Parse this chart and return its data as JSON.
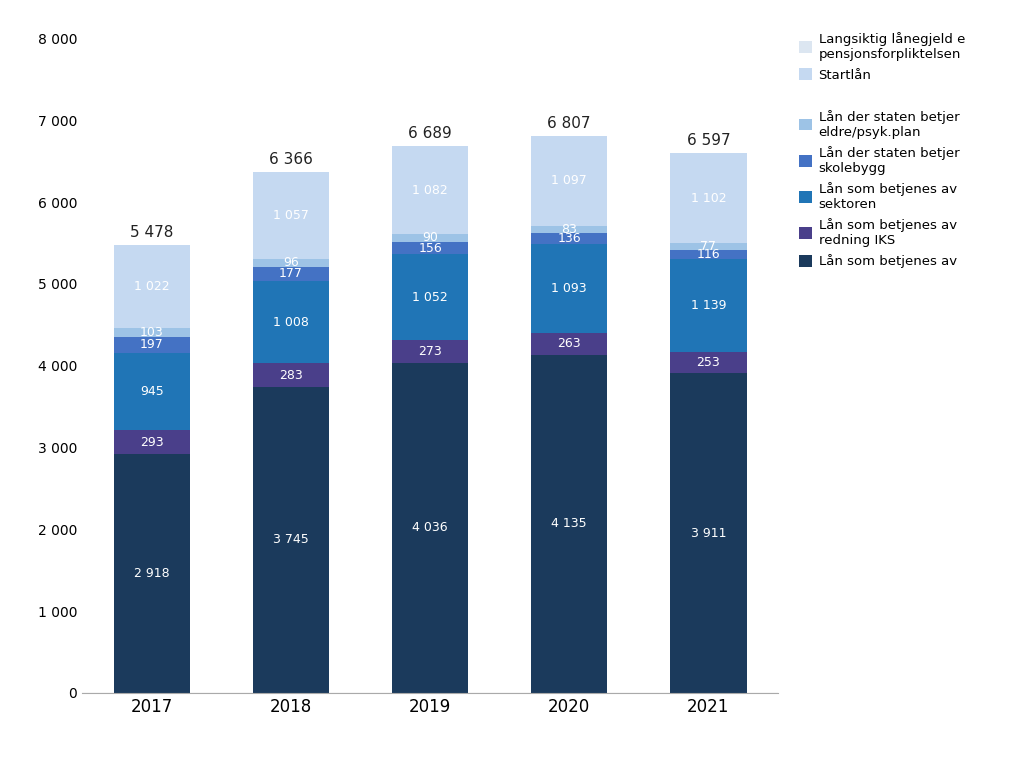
{
  "years": [
    "2017",
    "2018",
    "2019",
    "2020",
    "2021"
  ],
  "totals": [
    5478,
    6366,
    6689,
    6807,
    6597
  ],
  "series": [
    {
      "name": "Lån som betjenes av",
      "values": [
        2918,
        3745,
        4036,
        4135,
        3911
      ],
      "color": "#1b3a5c"
    },
    {
      "name": "Lån som betjenes av\nredning IKS",
      "values": [
        293,
        283,
        273,
        263,
        253
      ],
      "color": "#4a3f8a"
    },
    {
      "name": "Lån som betjenes av\nsektoren",
      "values": [
        945,
        1008,
        1052,
        1093,
        1139
      ],
      "color": "#2075b6"
    },
    {
      "name": "Lån der staten betjer\nskolebygg",
      "values": [
        197,
        177,
        156,
        136,
        116
      ],
      "color": "#4472c4"
    },
    {
      "name": "Lån der staten betjer\neldre/psyk.plan",
      "values": [
        103,
        96,
        90,
        83,
        77
      ],
      "color": "#9dc3e6"
    },
    {
      "name": "Startlån",
      "values": [
        1022,
        1057,
        1082,
        1097,
        1102
      ],
      "color": "#c5d9f1"
    },
    {
      "name": "Langsiktig lånegjeld e\npensjonsforpliktelsen",
      "values": [
        0,
        0,
        0,
        0,
        0
      ],
      "color": "#dce6f1"
    }
  ],
  "background_color": "#ffffff",
  "label_color_dark": "#222222",
  "label_color_white": "#ffffff",
  "ylim": [
    0,
    8000
  ],
  "yticks": [
    0,
    1000,
    2000,
    3000,
    4000,
    5000,
    6000,
    7000,
    8000
  ],
  "bar_width": 0.55,
  "legend_entries": [
    {
      "label": "Langsiktig lånegjeld e\npensjonsforpliktelsen",
      "color": "#dce6f1"
    },
    {
      "label": "Startlån",
      "color": "#c5d9f1"
    },
    {
      "label": null,
      "color": null
    },
    {
      "label": "Lån der staten betjer\neldre/psyk.plan",
      "color": "#9dc3e6"
    },
    {
      "label": "Lån der staten betjer\nskolebygg",
      "color": "#4472c4"
    },
    {
      "label": "Lån som betjenes av\nsektoren",
      "color": "#2075b6"
    },
    {
      "label": "Lån som betjenes av\nredning IKS",
      "color": "#4a3f8a"
    },
    {
      "label": "Lån som betjenes av",
      "color": "#1b3a5c"
    }
  ]
}
